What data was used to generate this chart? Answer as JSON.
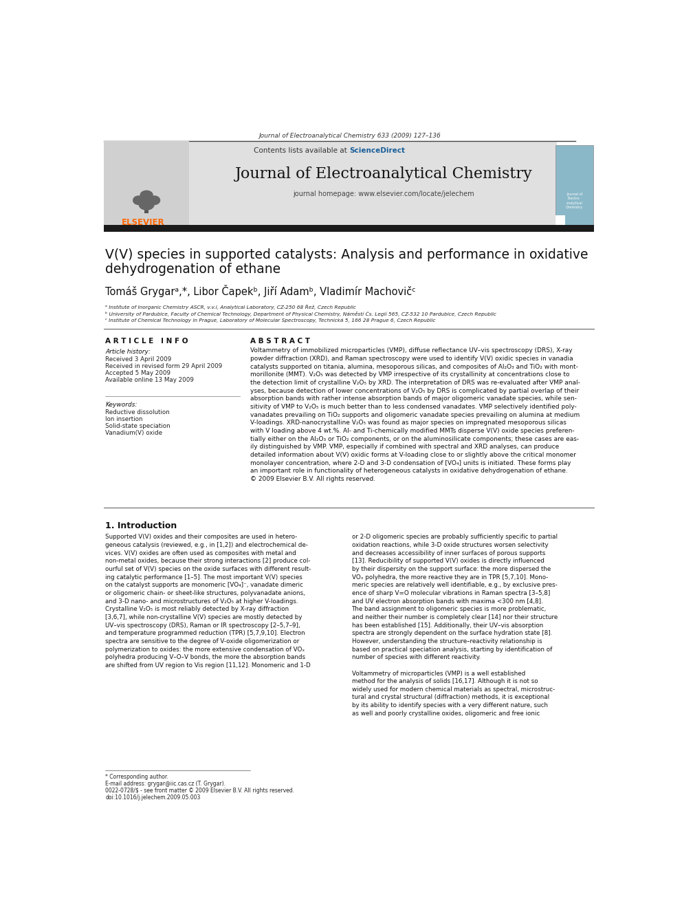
{
  "page_width": 9.92,
  "page_height": 13.23,
  "background_color": "#ffffff",
  "journal_ref": "Journal of Electroanalytical Chemistry 633 (2009) 127–136",
  "sciencedirect_text": "ScienceDirect",
  "journal_name": "Journal of Electroanalytical Chemistry",
  "journal_homepage": "journal homepage: www.elsevier.com/locate/jelechem",
  "paper_title_line1": "V(V) species in supported catalysts: Analysis and performance in oxidative",
  "paper_title_line2": "dehydrogenation of ethane",
  "authors": "Tomáš Grygarᵃ,*, Libor Čapekᵇ, Jiří Adamᵇ, Vladimír Machovičᶜ",
  "affil_a": "ᵃ Institute of Inorganic Chemistry ASCR, v.v.i, Analytical Laboratory, CZ-250 68 Řež, Czech Republic",
  "affil_b": "ᵇ University of Pardubice, Faculty of Chemical Technology, Department of Physical Chemistry, Náměstí Čs. Legií 565, CZ-532 10 Pardubice, Czech Republic",
  "affil_c": "ᶜ Institute of Chemical Technology in Prague, Laboratory of Molecular Spectroscopy, Technická 5, 166 28 Prague 6, Czech Republic",
  "article_info_title": "A R T I C L E   I N F O",
  "abstract_title": "A B S T R A C T",
  "article_history_label": "Article history:",
  "received": "Received 3 April 2009",
  "revised": "Received in revised form 29 April 2009",
  "accepted": "Accepted 5 May 2009",
  "available": "Available online 13 May 2009",
  "keywords_label": "Keywords:",
  "keyword1": "Reductive dissolution",
  "keyword2": "Ion insertion",
  "keyword3": "Solid-state speciation",
  "keyword4": "Vanadium(V) oxide",
  "abstract_text": "Voltammetry of immobilized microparticles (VMP), diffuse reflectance UV–vis spectroscopy (DRS), X-ray\npowder diffraction (XRD), and Raman spectroscopy were used to identify V(V) oxidic species in vanadia\ncatalysts supported on titania, alumina, mesoporous silicas, and composites of Al₂O₃ and TiO₂ with mont-\nmorillonite (MMT). V₂O₅ was detected by VMP irrespective of its crystallinity at concentrations close to\nthe detection limit of crystalline V₂O₅ by XRD. The interpretation of DRS was re-evaluated after VMP anal-\nyses, because detection of lower concentrations of V₂O₅ by DRS is complicated by partial overlap of their\nabsorption bands with rather intense absorption bands of major oligomeric vanadate species, while sen-\nsitivity of VMP to V₂O₅ is much better than to less condensed vanadates. VMP selectively identified poly-\nvanadates prevailing on TiO₂ supports and oligomeric vanadate species prevailing on alumina at medium\nV-loadings. XRD-nanocrystalline V₂O₅ was found as major species on impregnated mesoporous silicas\nwith V loading above 4 wt.%. Al- and Ti-chemically modified MMTs disperse V(V) oxide species preferen-\ntially either on the Al₂O₃ or TiO₂ components, or on the aluminosilicate components; these cases are eas-\nily distinguished by VMP. VMP, especially if combined with spectral and XRD analyses, can produce\ndetailed information about V(V) oxidic forms at V-loading close to or slightly above the critical monomer\nmonolayer concentration, where 2-D and 3-D condensation of [VO₄] units is initiated. These forms play\nan important role in functionality of heterogeneous catalysts in oxidative dehydrogenation of ethane.\n© 2009 Elsevier B.V. All rights reserved.",
  "section1_title": "1. Introduction",
  "intro_col1": "Supported V(V) oxides and their composites are used in hetero-\ngeneous catalysis (reviewed, e.g., in [1,2]) and electrochemical de-\nvices. V(V) oxides are often used as composites with metal and\nnon-metal oxides, because their strong interactions [2] produce col-\nourful set of V(V) species on the oxide surfaces with different result-\ning catalytic performance [1–5]. The most important V(V) species\non the catalyst supports are monomeric [VO₄]⁻, vanadate dimeric\nor oligomeric chain- or sheet-like structures, polyvanadate anions,\nand 3-D nano- and microstructures of V₂O₅ at higher V-loadings.\nCrystalline V₂O₅ is most reliably detected by X-ray diffraction\n[3,6,7], while non-crystalline V(V) species are mostly detected by\nUV–vis spectroscopy (DRS), Raman or IR spectroscopy [2–5,7–9],\nand temperature programmed reduction (TPR) [5,7,9,10]. Electron\nspectra are sensitive to the degree of V-oxide oligomerization or\npolymerization to oxides: the more extensive condensation of VOₓ\npolyhedra producing V–O–V bonds, the more the absorption bands\nare shifted from UV region to Vis region [11,12]. Monomeric and 1-D",
  "intro_col2": "or 2-D oligomeric species are probably sufficiently specific to partial\noxidation reactions, while 3-D oxide structures worsen selectivity\nand decreases accessibility of inner surfaces of porous supports\n[13]. Reducibility of supported V(V) oxides is directly influenced\nby their dispersity on the support surface: the more dispersed the\nVOₓ polyhedra, the more reactive they are in TPR [5,7,10]. Mono-\nmeric species are relatively well identifiable, e.g., by exclusive pres-\nence of sharp V=O molecular vibrations in Raman spectra [3–5,8]\nand UV electron absorption bands with maxima <300 nm [4,8].\nThe band assignment to oligomeric species is more problematic,\nand neither their number is completely clear [14] nor their structure\nhas been established [15]. Additionally, their UV–vis absorption\nspectra are strongly dependent on the surface hydration state [8].\nHowever, understanding the structure–reactivity relationship is\nbased on practical speciation analysis, starting by identification of\nnumber of species with different reactivity.\n\nVoltammetry of microparticles (VMP) is a well established\nmethod for the analysis of solids [16,17]. Although it is not so\nwidely used for modern chemical materials as spectral, microstruc-\ntural and crystal structural (diffraction) methods, it is exceptional\nby its ability to identify species with a very different nature, such\nas well and poorly crystalline oxides, oligomeric and free ionic",
  "footnote_star": "* Corresponding author.",
  "footnote_email": "E-mail address: grygar@iic.cas.cz (T. Grygar).",
  "footnote_copyright": "0022-0728/$ - see front matter © 2009 Elsevier B.V. All rights reserved.",
  "footnote_doi": "doi:10.1016/j.jelechem.2009.05.003",
  "elsevier_color": "#FF6600",
  "sciencedirect_color": "#1a5f99",
  "header_bg": "#e0e0e0",
  "dark_bar_color": "#1a1a1a"
}
